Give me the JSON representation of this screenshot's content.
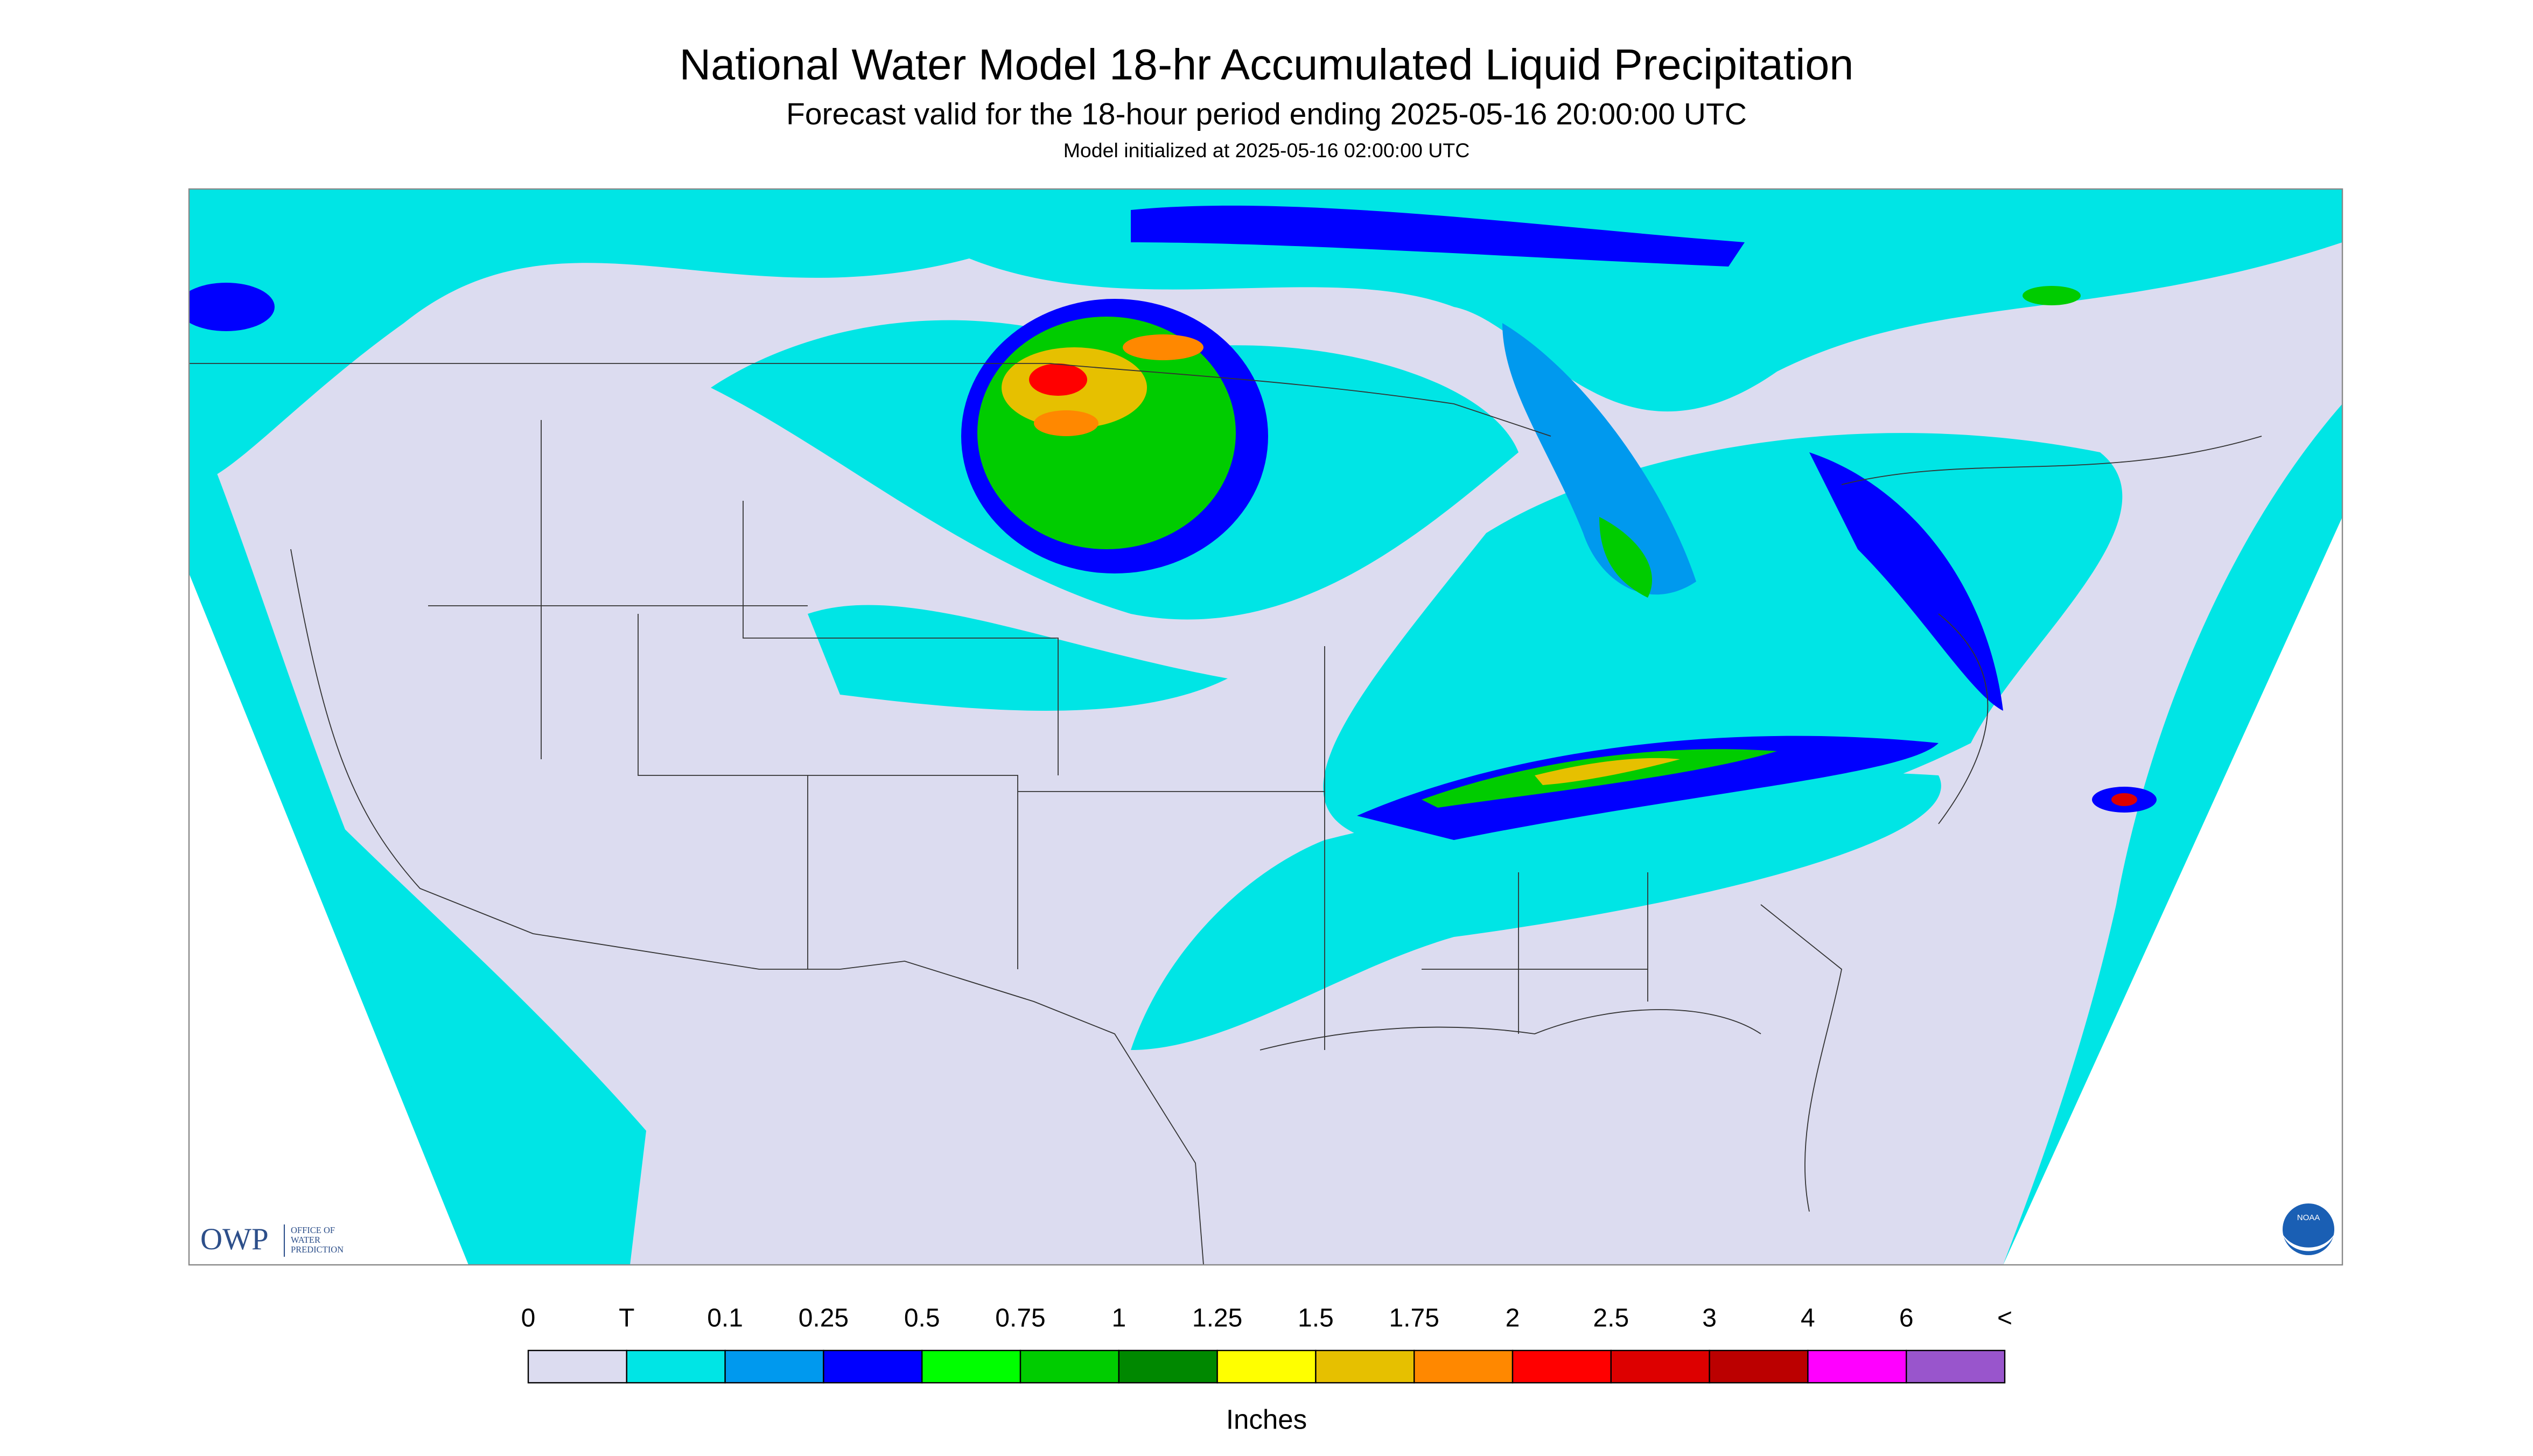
{
  "header": {
    "title": "National Water Model 18-hr Accumulated Liquid Precipitation",
    "subtitle": "Forecast valid for the 18-hour period ending 2025-05-16 20:00:00 UTC",
    "note": "Model initialized at 2025-05-16 02:00:00 UTC"
  },
  "logos": {
    "owp": "OWP",
    "owp_text": [
      "OFFICE OF",
      "WATER",
      "PREDICTION"
    ],
    "noaa": "NOAA"
  },
  "legend": {
    "labels": [
      "0",
      "T",
      "0.1",
      "0.25",
      "0.5",
      "0.75",
      "1",
      "1.25",
      "1.5",
      "1.75",
      "2",
      "2.5",
      "3",
      "4",
      "6",
      "<"
    ],
    "colors": [
      "#dcdcf0",
      "#00e5e5",
      "#0099ee",
      "#0000ff",
      "#00ff00",
      "#00cc00",
      "#008800",
      "#ffff00",
      "#e6c000",
      "#ff8800",
      "#ff0000",
      "#dd0000",
      "#bb0000",
      "#ff00ff",
      "#9955cc"
    ],
    "unit": "Inches"
  }
}
